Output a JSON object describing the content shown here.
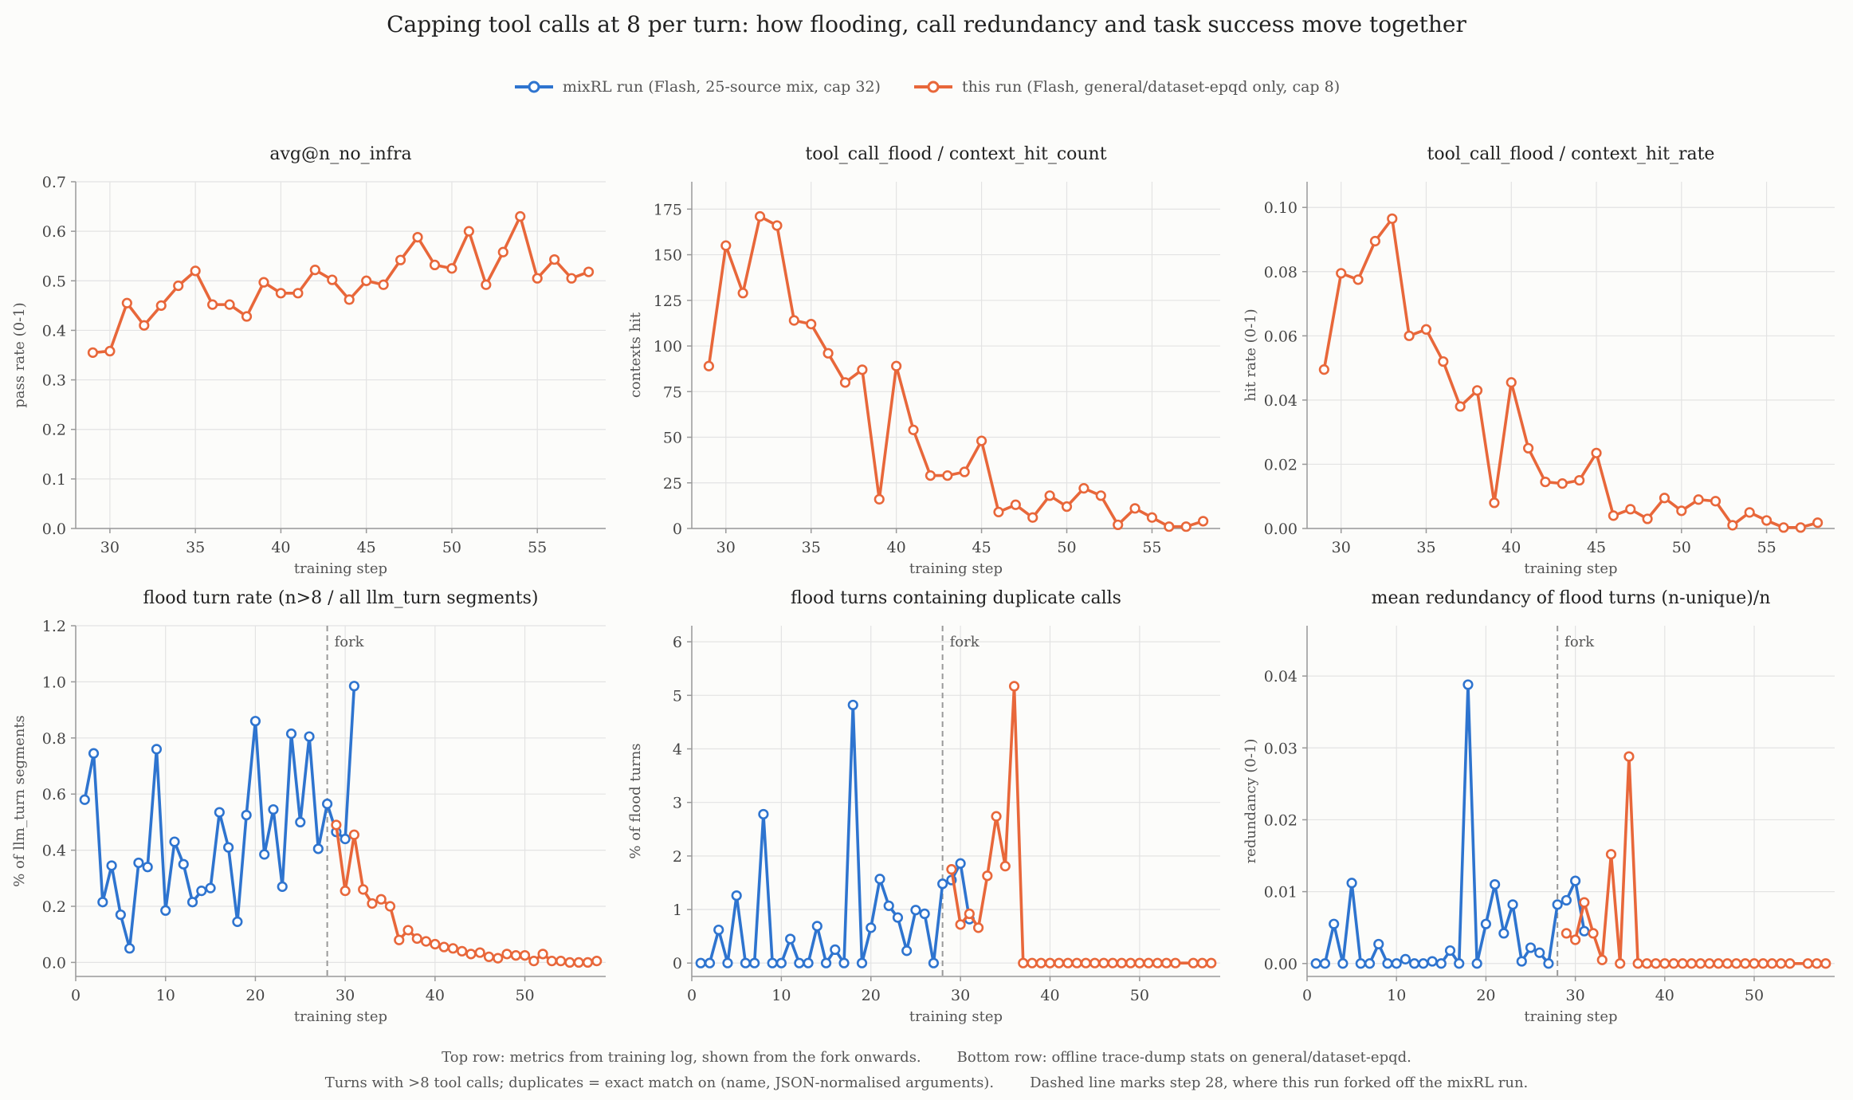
{
  "title": "Capping tool calls at 8 per turn: how flooding, call redundancy and task success move together",
  "colors": {
    "mixrl": "#2e74cf",
    "this": "#e8673a",
    "grid": "#e3e3e3",
    "axis": "#999999",
    "fork": "#999999"
  },
  "legend": [
    {
      "name": "mixRL run  (Flash, 25-source mix, cap 32)",
      "color": "#2e74cf"
    },
    {
      "name": "this run  (Flash, general/dataset-epqd only, cap 8)",
      "color": "#e8673a"
    }
  ],
  "footnotes": {
    "line1a": "Top row: metrics from training log, shown from the fork onwards.",
    "line1b": "Bottom row: offline trace-dump stats on general/dataset-epqd.",
    "line2a": "Turns with >8 tool calls; duplicates = exact match on (name, JSON-normalised arguments).",
    "line2b": "Dashed line marks step 28, where this run forked off the mixRL run."
  },
  "chart_data": [
    {
      "type": "line",
      "title": "avg@n_no_infra",
      "xlabel": "training step",
      "ylabel": "pass rate (0-1)",
      "xlim": [
        28,
        59
      ],
      "ylim": [
        0,
        0.7
      ],
      "xticks": [
        30,
        35,
        40,
        45,
        50,
        55
      ],
      "yticks": [
        0,
        0.1,
        0.2,
        0.3,
        0.4,
        0.5,
        0.6,
        0.7
      ],
      "yfmt": 1,
      "series": [
        {
          "series_key": "this",
          "x": [
            29,
            30,
            31,
            32,
            33,
            34,
            35,
            36,
            37,
            38,
            39,
            40,
            41,
            42,
            43,
            44,
            45,
            46,
            47,
            48,
            49,
            50,
            51,
            52,
            53,
            54,
            55,
            56,
            57,
            58
          ],
          "y": [
            0.355,
            0.358,
            0.455,
            0.41,
            0.45,
            0.49,
            0.52,
            0.452,
            0.452,
            0.428,
            0.497,
            0.475,
            0.475,
            0.522,
            0.502,
            0.462,
            0.5,
            0.492,
            0.542,
            0.588,
            0.532,
            0.525,
            0.6,
            0.492,
            0.558,
            0.63,
            0.505,
            0.543,
            0.505,
            0.518
          ]
        }
      ]
    },
    {
      "type": "line",
      "title": "tool_call_flood / context_hit_count",
      "xlabel": "training step",
      "ylabel": "contexts hit",
      "xlim": [
        28,
        59
      ],
      "ylim": [
        0,
        190
      ],
      "xticks": [
        30,
        35,
        40,
        45,
        50,
        55
      ],
      "yticks": [
        0,
        25,
        50,
        75,
        100,
        125,
        150,
        175
      ],
      "yfmt": 0,
      "series": [
        {
          "series_key": "this",
          "x": [
            29,
            30,
            31,
            32,
            33,
            34,
            35,
            36,
            37,
            38,
            39,
            40,
            41,
            42,
            43,
            44,
            45,
            46,
            47,
            48,
            49,
            50,
            51,
            52,
            53,
            54,
            55,
            56,
            57,
            58
          ],
          "y": [
            89,
            155,
            129,
            171,
            166,
            114,
            112,
            96,
            80,
            87,
            16,
            89,
            54,
            29,
            29,
            31,
            48,
            9,
            13,
            6,
            18,
            12,
            22,
            18,
            2,
            11,
            6,
            1,
            1,
            4
          ]
        }
      ]
    },
    {
      "type": "line",
      "title": "tool_call_flood / context_hit_rate",
      "xlabel": "training step",
      "ylabel": "hit rate (0-1)",
      "xlim": [
        28,
        59
      ],
      "ylim": [
        0,
        0.108
      ],
      "xticks": [
        30,
        35,
        40,
        45,
        50,
        55
      ],
      "yticks": [
        0,
        0.02,
        0.04,
        0.06,
        0.08,
        0.1
      ],
      "yfmt": 2,
      "series": [
        {
          "series_key": "this",
          "x": [
            29,
            30,
            31,
            32,
            33,
            34,
            35,
            36,
            37,
            38,
            39,
            40,
            41,
            42,
            43,
            44,
            45,
            46,
            47,
            48,
            49,
            50,
            51,
            52,
            53,
            54,
            55,
            56,
            57,
            58
          ],
          "y": [
            0.0495,
            0.0795,
            0.0775,
            0.0895,
            0.0965,
            0.06,
            0.062,
            0.052,
            0.038,
            0.043,
            0.008,
            0.0455,
            0.025,
            0.0145,
            0.014,
            0.015,
            0.0235,
            0.004,
            0.006,
            0.003,
            0.0095,
            0.0055,
            0.009,
            0.0085,
            0.001,
            0.005,
            0.0025,
            0.0003,
            0.0003,
            0.0018
          ]
        }
      ]
    },
    {
      "type": "line",
      "title": "flood turn rate  (n>8 / all llm_turn segments)",
      "xlabel": "training step",
      "ylabel": "% of llm_turn segments",
      "xlim": [
        0,
        59
      ],
      "ylim": [
        -0.05,
        1.2
      ],
      "xticks": [
        0,
        10,
        20,
        30,
        40,
        50
      ],
      "yticks": [
        0,
        0.2,
        0.4,
        0.6,
        0.8,
        1.0,
        1.2
      ],
      "yfmt": 1,
      "fork_x": 28,
      "fork_label": "fork",
      "series": [
        {
          "series_key": "mixrl",
          "x": [
            1,
            2,
            3,
            4,
            5,
            6,
            7,
            8,
            9,
            10,
            11,
            12,
            13,
            14,
            15,
            16,
            17,
            18,
            19,
            20,
            21,
            22,
            23,
            24,
            25,
            26,
            27,
            28,
            29,
            30,
            31
          ],
          "y": [
            0.58,
            0.745,
            0.215,
            0.345,
            0.17,
            0.05,
            0.355,
            0.34,
            0.76,
            0.185,
            0.43,
            0.35,
            0.215,
            0.255,
            0.265,
            0.535,
            0.41,
            0.145,
            0.525,
            0.86,
            0.385,
            0.545,
            0.27,
            0.815,
            0.5,
            0.805,
            0.405,
            0.565,
            0.465,
            0.44,
            0.985
          ]
        },
        {
          "series_key": "this",
          "x": [
            29,
            30,
            31,
            32,
            33,
            34,
            35,
            36,
            37,
            38,
            39,
            40,
            41,
            42,
            43,
            44,
            45,
            46,
            47,
            48,
            49,
            50,
            51,
            52,
            53,
            54,
            55,
            56,
            57,
            58
          ],
          "y": [
            0.49,
            0.255,
            0.455,
            0.26,
            0.21,
            0.225,
            0.2,
            0.08,
            0.115,
            0.085,
            0.075,
            0.065,
            0.055,
            0.05,
            0.04,
            0.03,
            0.035,
            0.02,
            0.015,
            0.03,
            0.025,
            0.025,
            0.005,
            0.03,
            0.005,
            0.005,
            0.0,
            0.0,
            0.0,
            0.005
          ]
        }
      ]
    },
    {
      "type": "line",
      "title": "flood turns containing duplicate calls",
      "xlabel": "training step",
      "ylabel": "% of flood turns",
      "xlim": [
        0,
        59
      ],
      "ylim": [
        -0.25,
        6.3
      ],
      "xticks": [
        0,
        10,
        20,
        30,
        40,
        50
      ],
      "yticks": [
        0,
        1,
        2,
        3,
        4,
        5,
        6
      ],
      "yfmt": 0,
      "fork_x": 28,
      "fork_label": "fork",
      "series": [
        {
          "series_key": "mixrl",
          "x": [
            1,
            2,
            3,
            4,
            5,
            6,
            7,
            8,
            9,
            10,
            11,
            12,
            13,
            14,
            15,
            16,
            17,
            18,
            19,
            20,
            21,
            22,
            23,
            24,
            25,
            26,
            27,
            28,
            29,
            30,
            31
          ],
          "y": [
            0,
            0,
            0.62,
            0,
            1.26,
            0,
            0,
            2.78,
            0,
            0,
            0.45,
            0,
            0,
            0.69,
            0,
            0.25,
            0,
            4.82,
            0,
            0.66,
            1.57,
            1.07,
            0.85,
            0.23,
            0.99,
            0.92,
            0,
            1.48,
            1.55,
            1.86,
            0.82
          ]
        },
        {
          "series_key": "this",
          "x": [
            29,
            30,
            31,
            32,
            33,
            34,
            35,
            36,
            37,
            38,
            39,
            40,
            41,
            42,
            43,
            44,
            45,
            46,
            47,
            48,
            49,
            50,
            51,
            52,
            53,
            54,
            56,
            57,
            58
          ],
          "y": [
            1.75,
            0.72,
            0.92,
            0.66,
            1.63,
            2.74,
            1.81,
            5.17,
            0,
            0,
            0,
            0,
            0,
            0,
            0,
            0,
            0,
            0,
            0,
            0,
            0,
            0,
            0,
            0,
            0,
            0,
            0,
            0,
            0
          ]
        }
      ]
    },
    {
      "type": "line",
      "title": "mean redundancy of flood turns  (n-unique)/n",
      "xlabel": "training step",
      "ylabel": "redundancy (0-1)",
      "xlim": [
        0,
        59
      ],
      "ylim": [
        -0.0018,
        0.047
      ],
      "xticks": [
        0,
        10,
        20,
        30,
        40,
        50
      ],
      "yticks": [
        0,
        0.01,
        0.02,
        0.03,
        0.04
      ],
      "yfmt": 2,
      "fork_x": 28,
      "fork_label": "fork",
      "series": [
        {
          "series_key": "mixrl",
          "x": [
            1,
            2,
            3,
            4,
            5,
            6,
            7,
            8,
            9,
            10,
            11,
            12,
            13,
            14,
            15,
            16,
            17,
            18,
            19,
            20,
            21,
            22,
            23,
            24,
            25,
            26,
            27,
            28,
            29,
            30,
            31
          ],
          "y": [
            0,
            0,
            0.0055,
            0,
            0.0112,
            0,
            0,
            0.0027,
            0,
            0,
            0.0006,
            0,
            0,
            0.0003,
            0,
            0.0018,
            0,
            0.0388,
            0,
            0.0055,
            0.011,
            0.0042,
            0.0082,
            0.0003,
            0.0022,
            0.0015,
            0,
            0.0082,
            0.0088,
            0.0115,
            0.0045
          ]
        },
        {
          "series_key": "this",
          "x": [
            29,
            30,
            31,
            32,
            33,
            34,
            35,
            36,
            37,
            38,
            39,
            40,
            41,
            42,
            43,
            44,
            45,
            46,
            47,
            48,
            49,
            50,
            51,
            52,
            53,
            54,
            56,
            57,
            58
          ],
          "y": [
            0.0042,
            0.0033,
            0.0085,
            0.0042,
            0.0005,
            0.0152,
            0,
            0.0288,
            0,
            0,
            0,
            0,
            0,
            0,
            0,
            0,
            0,
            0,
            0,
            0,
            0,
            0,
            0,
            0,
            0,
            0,
            0,
            0,
            0
          ]
        }
      ]
    }
  ]
}
